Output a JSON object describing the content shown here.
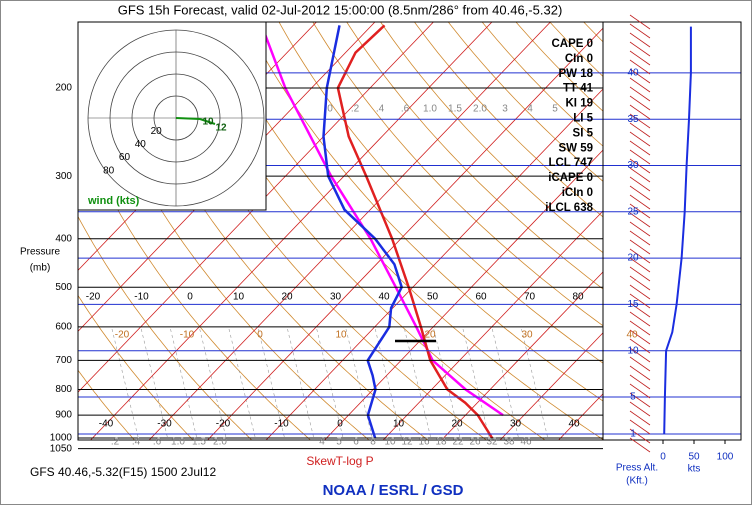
{
  "title": "GFS 15h Forecast, valid 02-Jul-2012 15:00:00 (8.5nm/286° from 40.46,-5.32)",
  "indices": [
    "CAPE 0",
    "CIn 0",
    "PW 18",
    "TT 41",
    "KI 19",
    "LI 5",
    "SI 5",
    "SW 59",
    "LCL 747",
    "iCAPE 0",
    "iCIn 0",
    "iLCL 638"
  ],
  "pressure_axis": {
    "label": [
      "Pressure",
      "(mb)"
    ],
    "ticks": [
      200,
      300,
      400,
      500,
      600,
      700,
      800,
      900,
      1000,
      1050
    ]
  },
  "temperature_labels": [
    -40,
    -30,
    -20,
    -10,
    0,
    10,
    20,
    30,
    40
  ],
  "upper_labels": [
    -20,
    -10,
    0,
    10,
    20,
    30,
    40,
    50,
    60,
    70,
    80
  ],
  "moist_labels": [
    -20,
    -10,
    0,
    10,
    20,
    30,
    40
  ],
  "mixing_ratio_top": [
    "0",
    ".2",
    ".4",
    ".6",
    "1.0",
    "1.5",
    "2.0",
    "3",
    "4",
    "5"
  ],
  "mixing_ratio_bottom": [
    ".2",
    ".4",
    ".6",
    "1.0",
    "1.5",
    "2.0",
    "4",
    "5",
    "6",
    "8",
    "10",
    "12",
    "16",
    "18",
    "22",
    "26",
    "32",
    "38",
    "46"
  ],
  "temperature_profile": {
    "pressure": [
      1000,
      900,
      850,
      800,
      700,
      600,
      500,
      400,
      300,
      250,
      200,
      170,
      150
    ],
    "values": [
      28.3,
      22.1,
      17.9,
      12.7,
      5.0,
      -2.1,
      -10.7,
      -21.5,
      -36.2,
      -45.7,
      -55.5,
      -58.3,
      -57.8
    ]
  },
  "dewpoint_profile": {
    "pressure": [
      1000,
      900,
      800,
      750,
      700,
      600,
      550,
      500,
      450,
      400,
      350,
      300,
      250,
      200,
      150
    ],
    "values": [
      8.3,
      3.3,
      0.4,
      -2.4,
      -5.7,
      -7.5,
      -10.3,
      -11.9,
      -16.9,
      -24.4,
      -34.4,
      -42.7,
      -50.0,
      -57.4,
      -65.5
    ]
  },
  "parcel_profile": {
    "pressure": [
      900,
      800,
      700,
      600,
      500,
      400,
      300,
      200,
      150
    ],
    "values": [
      26.4,
      15.8,
      5.4,
      -2.9,
      -12.9,
      -25.2,
      -42.2,
      -64.5,
      -78.8
    ]
  },
  "height_axis": {
    "label": [
      "Press Alt.",
      "(Kft.)"
    ],
    "ticks": [
      1,
      5,
      10,
      15,
      20,
      25,
      30,
      35,
      40
    ]
  },
  "wind_axis": {
    "label": "kts",
    "ticks": [
      0,
      50,
      100
    ]
  },
  "wind_profile": {
    "height": [
      1,
      5,
      10,
      12,
      15,
      20,
      25,
      30,
      35,
      40,
      45
    ],
    "speed": [
      2,
      3,
      5,
      15,
      22,
      30,
      35,
      38,
      42,
      45,
      45
    ]
  },
  "hodograph": {
    "rings": [
      20,
      40,
      60,
      80
    ],
    "label": "wind (kts)",
    "point_labels": [
      "10",
      "12"
    ]
  },
  "footer": {
    "station": "GFS 40.46,-5.32(F15) 1500 2Jul12",
    "diagram": "SkewT-log P",
    "credit": "NOAA / ESRL / GSD"
  }
}
